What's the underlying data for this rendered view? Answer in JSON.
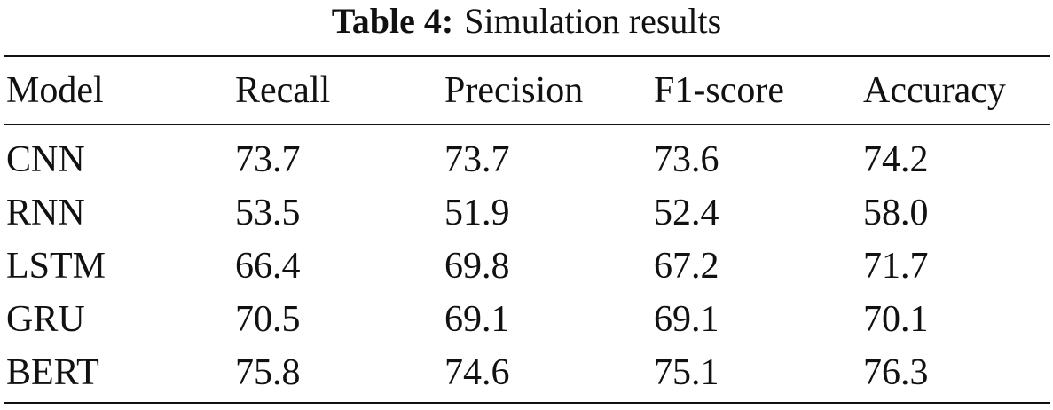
{
  "caption": {
    "label": "Table 4:",
    "text": "Simulation results"
  },
  "table": {
    "headers": [
      "Model",
      "Recall",
      "Precision",
      "F1-score",
      "Accuracy"
    ],
    "rows": [
      [
        "CNN",
        "73.7",
        "73.7",
        "73.6",
        "74.2"
      ],
      [
        "RNN",
        "53.5",
        "51.9",
        "52.4",
        "58.0"
      ],
      [
        "LSTM",
        "66.4",
        "69.8",
        "67.2",
        "71.7"
      ],
      [
        "GRU",
        "70.5",
        "69.1",
        "69.1",
        "70.1"
      ],
      [
        "BERT",
        "75.8",
        "74.6",
        "75.1",
        "76.3"
      ]
    ]
  }
}
